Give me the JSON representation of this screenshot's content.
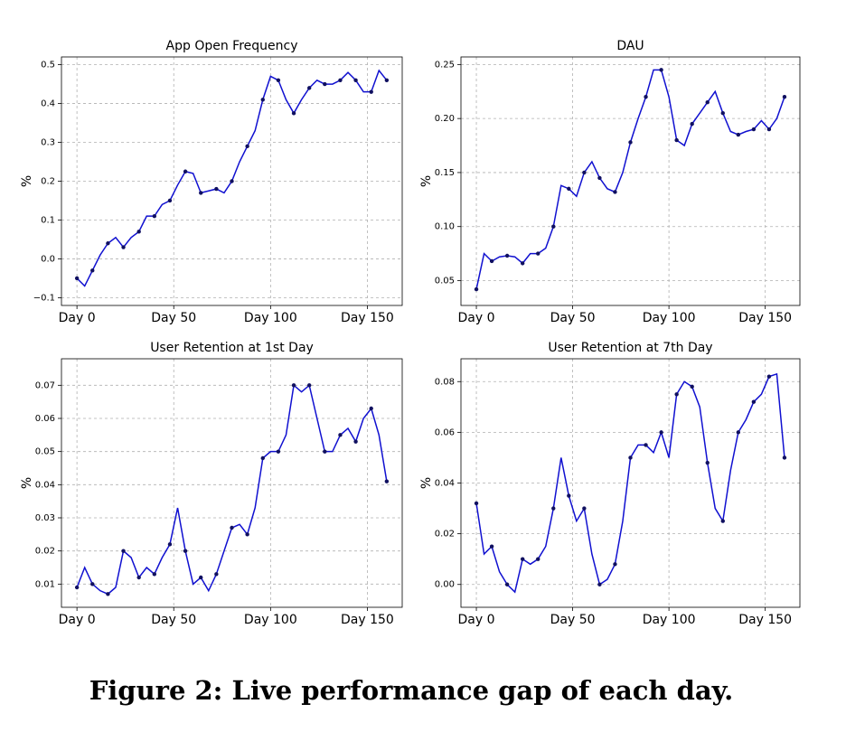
{
  "caption": "Figure 2: Live performance gap of each day.",
  "chart_data": [
    {
      "type": "line",
      "title": "App Open Frequency",
      "y_label": "%",
      "x": [
        0,
        4,
        8,
        12,
        16,
        20,
        24,
        28,
        32,
        36,
        40,
        44,
        48,
        52,
        56,
        60,
        64,
        68,
        72,
        76,
        80,
        84,
        88,
        92,
        96,
        100,
        104,
        108,
        112,
        116,
        120,
        124,
        128,
        132,
        136,
        140,
        144,
        148,
        152,
        156,
        160
      ],
      "series": [
        {
          "color": "#1010d0",
          "values": [
            -0.05,
            -0.07,
            -0.03,
            0.01,
            0.04,
            0.055,
            0.03,
            0.055,
            0.07,
            0.11,
            0.11,
            0.14,
            0.15,
            0.19,
            0.225,
            0.22,
            0.17,
            0.175,
            0.18,
            0.17,
            0.2,
            0.25,
            0.29,
            0.33,
            0.41,
            0.47,
            0.46,
            0.41,
            0.375,
            0.41,
            0.44,
            0.46,
            0.45,
            0.45,
            0.46,
            0.48,
            0.46,
            0.43,
            0.43,
            0.485,
            0.46
          ]
        }
      ],
      "xlim": [
        -8,
        168
      ],
      "xticks": [
        {
          "value": 0,
          "label": "Day 0"
        },
        {
          "value": 50,
          "label": "Day 50"
        },
        {
          "value": 100,
          "label": "Day 100"
        },
        {
          "value": 150,
          "label": "Day 150"
        }
      ],
      "ylim": [
        -0.12,
        0.52
      ],
      "yticks": [
        {
          "value": -0.1,
          "label": "−0.1"
        },
        {
          "value": 0,
          "label": "0.0"
        },
        0.1,
        0.2,
        0.3,
        0.4,
        0.5
      ],
      "grid": true
    },
    {
      "type": "line",
      "title": "DAU",
      "y_label": "%",
      "x": [
        0,
        4,
        8,
        12,
        16,
        20,
        24,
        28,
        32,
        36,
        40,
        44,
        48,
        52,
        56,
        60,
        64,
        68,
        72,
        76,
        80,
        84,
        88,
        92,
        96,
        100,
        104,
        108,
        112,
        116,
        120,
        124,
        128,
        132,
        136,
        140,
        144,
        148,
        152,
        156,
        160
      ],
      "series": [
        {
          "color": "#1010d0",
          "values": [
            0.042,
            0.075,
            0.068,
            0.072,
            0.073,
            0.072,
            0.066,
            0.075,
            0.075,
            0.08,
            0.1,
            0.138,
            0.135,
            0.128,
            0.15,
            0.16,
            0.145,
            0.135,
            0.132,
            0.15,
            0.178,
            0.2,
            0.22,
            0.245,
            0.245,
            0.22,
            0.18,
            0.175,
            0.195,
            0.205,
            0.215,
            0.225,
            0.205,
            0.188,
            0.185,
            0.188,
            0.19,
            0.198,
            0.19,
            0.2,
            0.22
          ]
        }
      ],
      "xlim": [
        -8,
        168
      ],
      "xticks": [
        {
          "value": 0,
          "label": "Day 0"
        },
        {
          "value": 50,
          "label": "Day 50"
        },
        {
          "value": 100,
          "label": "Day 100"
        },
        {
          "value": 150,
          "label": "Day 150"
        }
      ],
      "ylim": [
        0.027,
        0.257
      ],
      "yticks": [
        0.05,
        {
          "value": 0.1,
          "label": "0.10"
        },
        0.15,
        {
          "value": 0.2,
          "label": "0.20"
        },
        0.25
      ],
      "grid": true
    },
    {
      "type": "line",
      "title": "User Retention at 1st Day",
      "y_label": "%",
      "x": [
        0,
        4,
        8,
        12,
        16,
        20,
        24,
        28,
        32,
        36,
        40,
        44,
        48,
        52,
        56,
        60,
        64,
        68,
        72,
        76,
        80,
        84,
        88,
        92,
        96,
        100,
        104,
        108,
        112,
        116,
        120,
        124,
        128,
        132,
        136,
        140,
        144,
        148,
        152,
        156,
        160
      ],
      "series": [
        {
          "color": "#1010d0",
          "values": [
            0.009,
            0.015,
            0.01,
            0.008,
            0.007,
            0.009,
            0.02,
            0.018,
            0.012,
            0.015,
            0.013,
            0.018,
            0.022,
            0.033,
            0.02,
            0.01,
            0.012,
            0.008,
            0.013,
            0.02,
            0.027,
            0.028,
            0.025,
            0.033,
            0.048,
            0.05,
            0.05,
            0.055,
            0.07,
            0.068,
            0.07,
            0.06,
            0.05,
            0.05,
            0.055,
            0.057,
            0.053,
            0.06,
            0.063,
            0.055,
            0.041
          ]
        }
      ],
      "xlim": [
        -8,
        168
      ],
      "xticks": [
        {
          "value": 0,
          "label": "Day 0"
        },
        {
          "value": 50,
          "label": "Day 50"
        },
        {
          "value": 100,
          "label": "Day 100"
        },
        {
          "value": 150,
          "label": "Day 150"
        }
      ],
      "ylim": [
        0.003,
        0.078
      ],
      "yticks": [
        0.01,
        0.02,
        0.03,
        0.04,
        0.05,
        0.06,
        0.07
      ],
      "grid": true
    },
    {
      "type": "line",
      "title": "User Retention at 7th Day",
      "y_label": "%",
      "x": [
        0,
        4,
        8,
        12,
        16,
        20,
        24,
        28,
        32,
        36,
        40,
        44,
        48,
        52,
        56,
        60,
        64,
        68,
        72,
        76,
        80,
        84,
        88,
        92,
        96,
        100,
        104,
        108,
        112,
        116,
        120,
        124,
        128,
        132,
        136,
        140,
        144,
        148,
        152,
        156,
        160
      ],
      "series": [
        {
          "color": "#1010d0",
          "values": [
            0.032,
            0.012,
            0.015,
            0.005,
            0.0,
            -0.003,
            0.01,
            0.008,
            0.01,
            0.015,
            0.03,
            0.05,
            0.035,
            0.025,
            0.03,
            0.012,
            0.0,
            0.002,
            0.008,
            0.025,
            0.05,
            0.055,
            0.055,
            0.052,
            0.06,
            0.05,
            0.075,
            0.08,
            0.078,
            0.07,
            0.048,
            0.03,
            0.025,
            0.045,
            0.06,
            0.065,
            0.072,
            0.075,
            0.082,
            0.083,
            0.05
          ]
        }
      ],
      "xlim": [
        -8,
        168
      ],
      "xticks": [
        {
          "value": 0,
          "label": "Day 0"
        },
        {
          "value": 50,
          "label": "Day 50"
        },
        {
          "value": 100,
          "label": "Day 100"
        },
        {
          "value": 150,
          "label": "Day 150"
        }
      ],
      "ylim": [
        -0.009,
        0.089
      ],
      "yticks": [
        {
          "value": 0,
          "label": "0.00"
        },
        {
          "value": 0.02,
          "label": "0.02"
        },
        {
          "value": 0.04,
          "label": "0.04"
        },
        {
          "value": 0.06,
          "label": "0.06"
        },
        {
          "value": 0.08,
          "label": "0.08"
        }
      ],
      "grid": true
    }
  ]
}
